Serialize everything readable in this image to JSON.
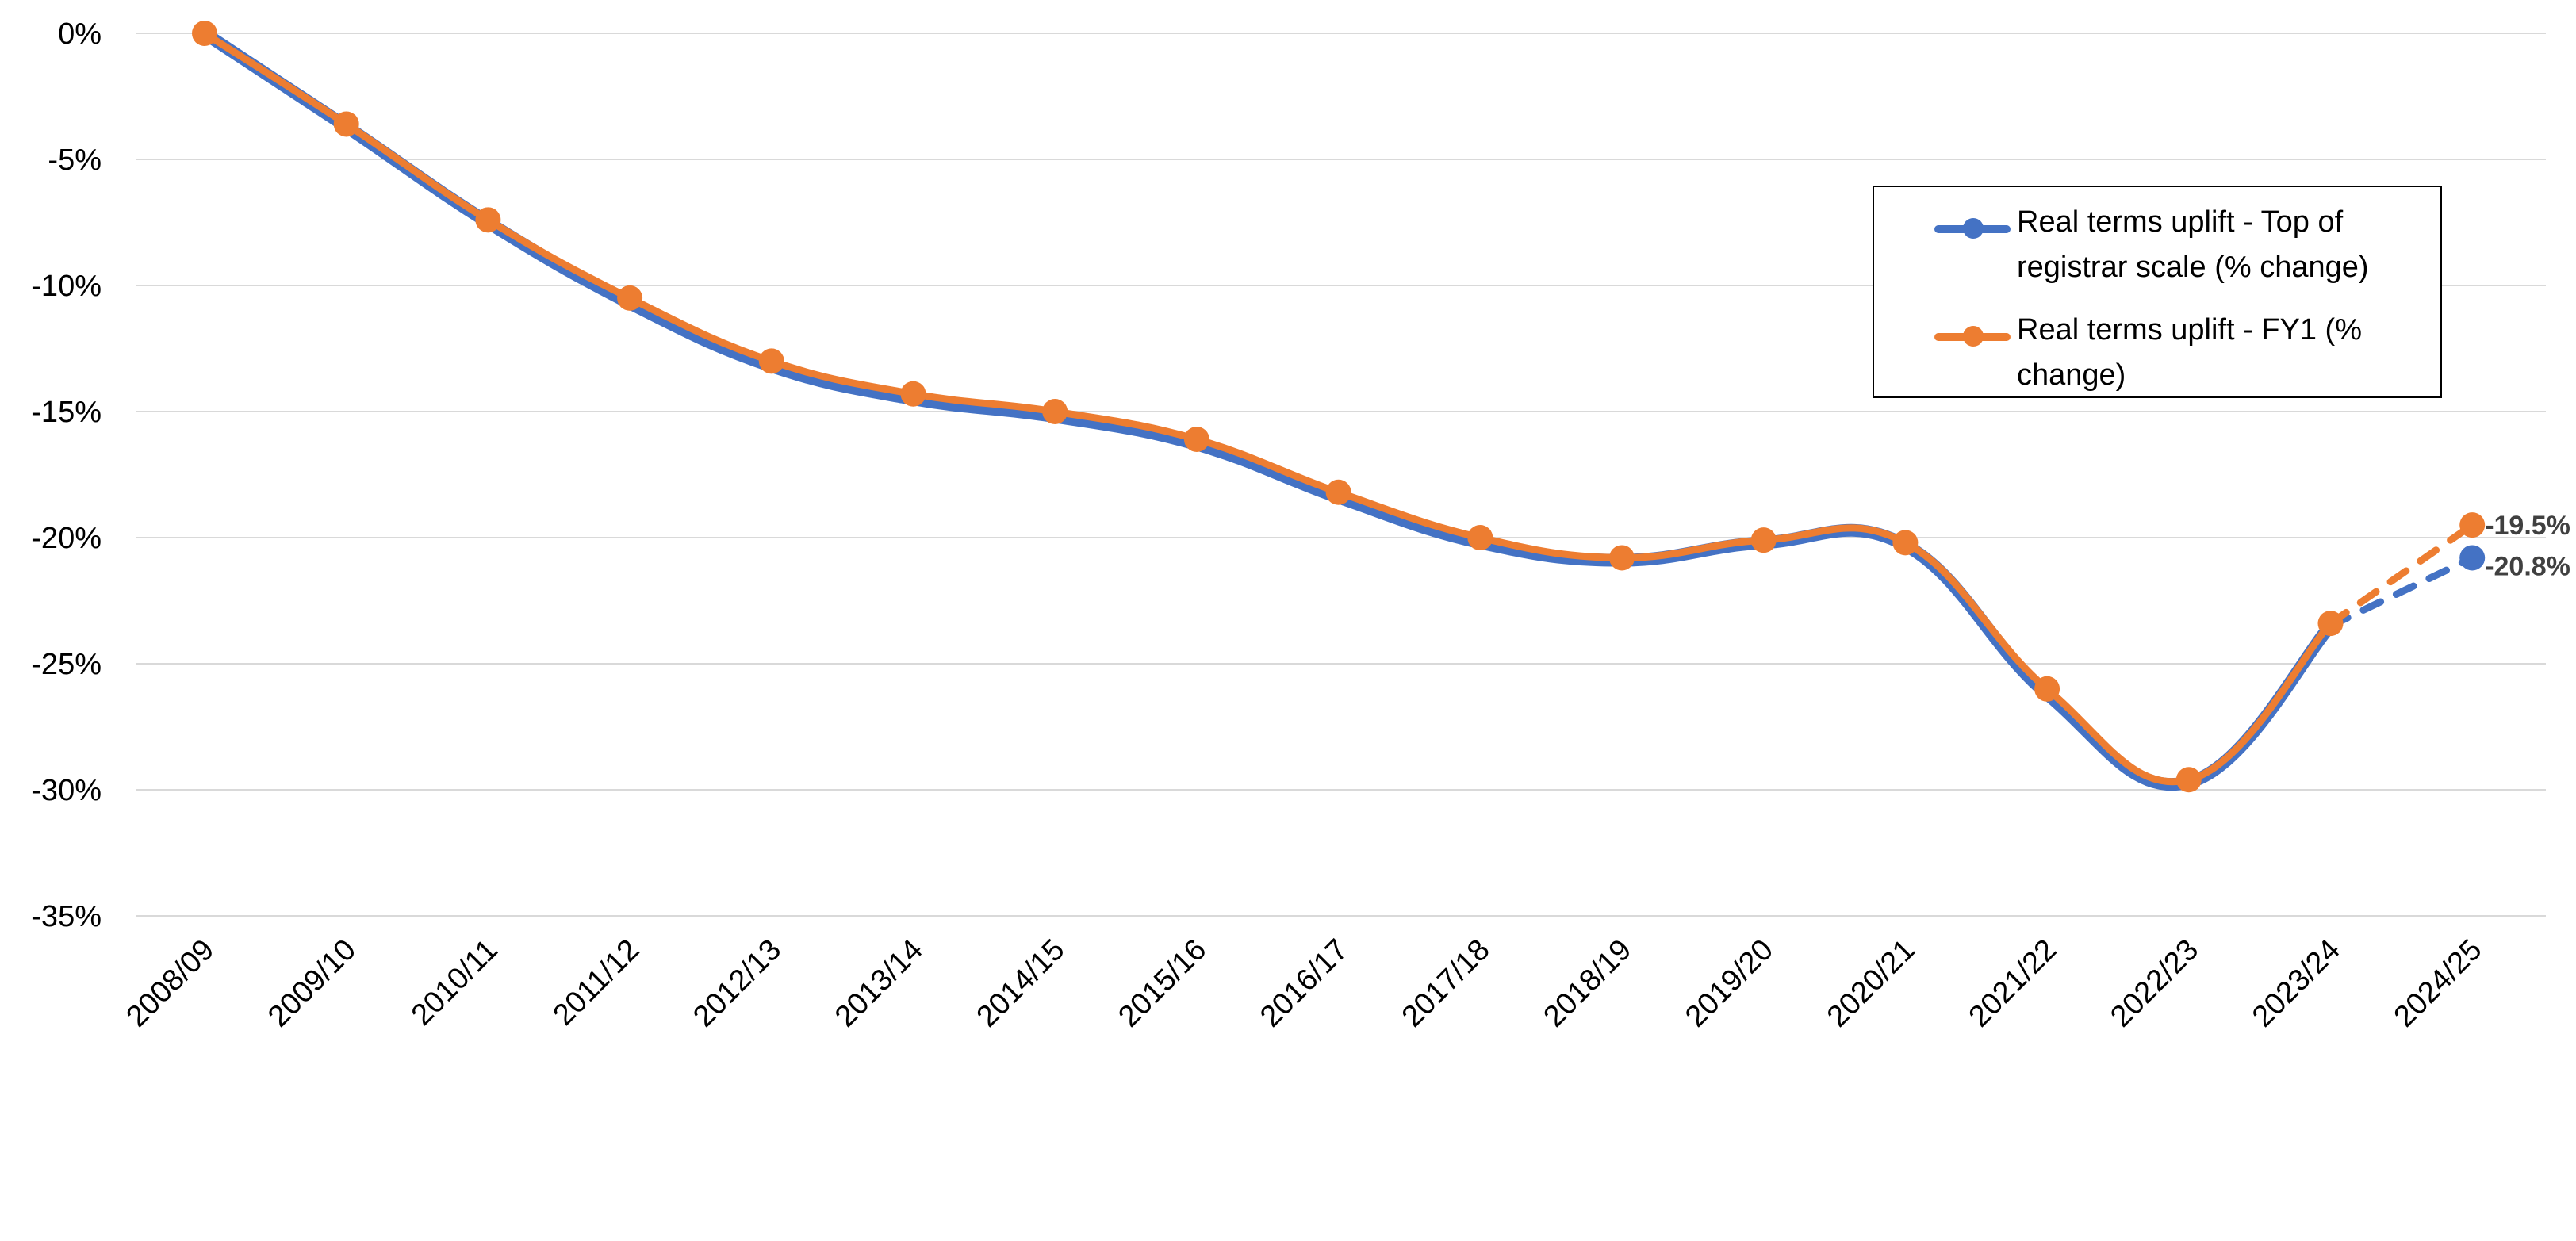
{
  "chart_data": {
    "type": "line",
    "title": "",
    "xlabel": "",
    "ylabel": "",
    "categories": [
      "2008/09",
      "2009/10",
      "2010/11",
      "2011/12",
      "2012/13",
      "2013/14",
      "2014/15",
      "2015/16",
      "2016/17",
      "2017/18",
      "2018/19",
      "2019/20",
      "2020/21",
      "2021/22",
      "2022/23",
      "2023/24",
      "2024/25"
    ],
    "y_ticks": [
      "0%",
      "-5%",
      "-10%",
      "-15%",
      "-20%",
      "-25%",
      "-30%",
      "-35%"
    ],
    "ylim": [
      -35,
      0
    ],
    "grid": true,
    "legend_position": "top-right",
    "series": [
      {
        "name": "Real terms uplift - Top of registrar scale (% change)",
        "color": "#4472C4",
        "values": [
          0,
          -3.7,
          -7.5,
          -10.7,
          -13.2,
          -14.5,
          -15.2,
          -16.3,
          -18.4,
          -20.2,
          -20.9,
          -20.2,
          -20.3,
          -26.2,
          -29.7,
          -23.5,
          -20.8
        ],
        "projected_from_index": 15,
        "end_label": "-20.8%"
      },
      {
        "name": "Real terms uplift - FY1 (% change)",
        "color": "#ED7D31",
        "values": [
          0,
          -3.6,
          -7.4,
          -10.5,
          -13.0,
          -14.3,
          -15.0,
          -16.1,
          -18.2,
          -20.0,
          -20.8,
          -20.1,
          -20.2,
          -26.0,
          -29.6,
          -23.4,
          -19.5
        ],
        "projected_from_index": 15,
        "end_label": "-19.5%"
      }
    ]
  }
}
